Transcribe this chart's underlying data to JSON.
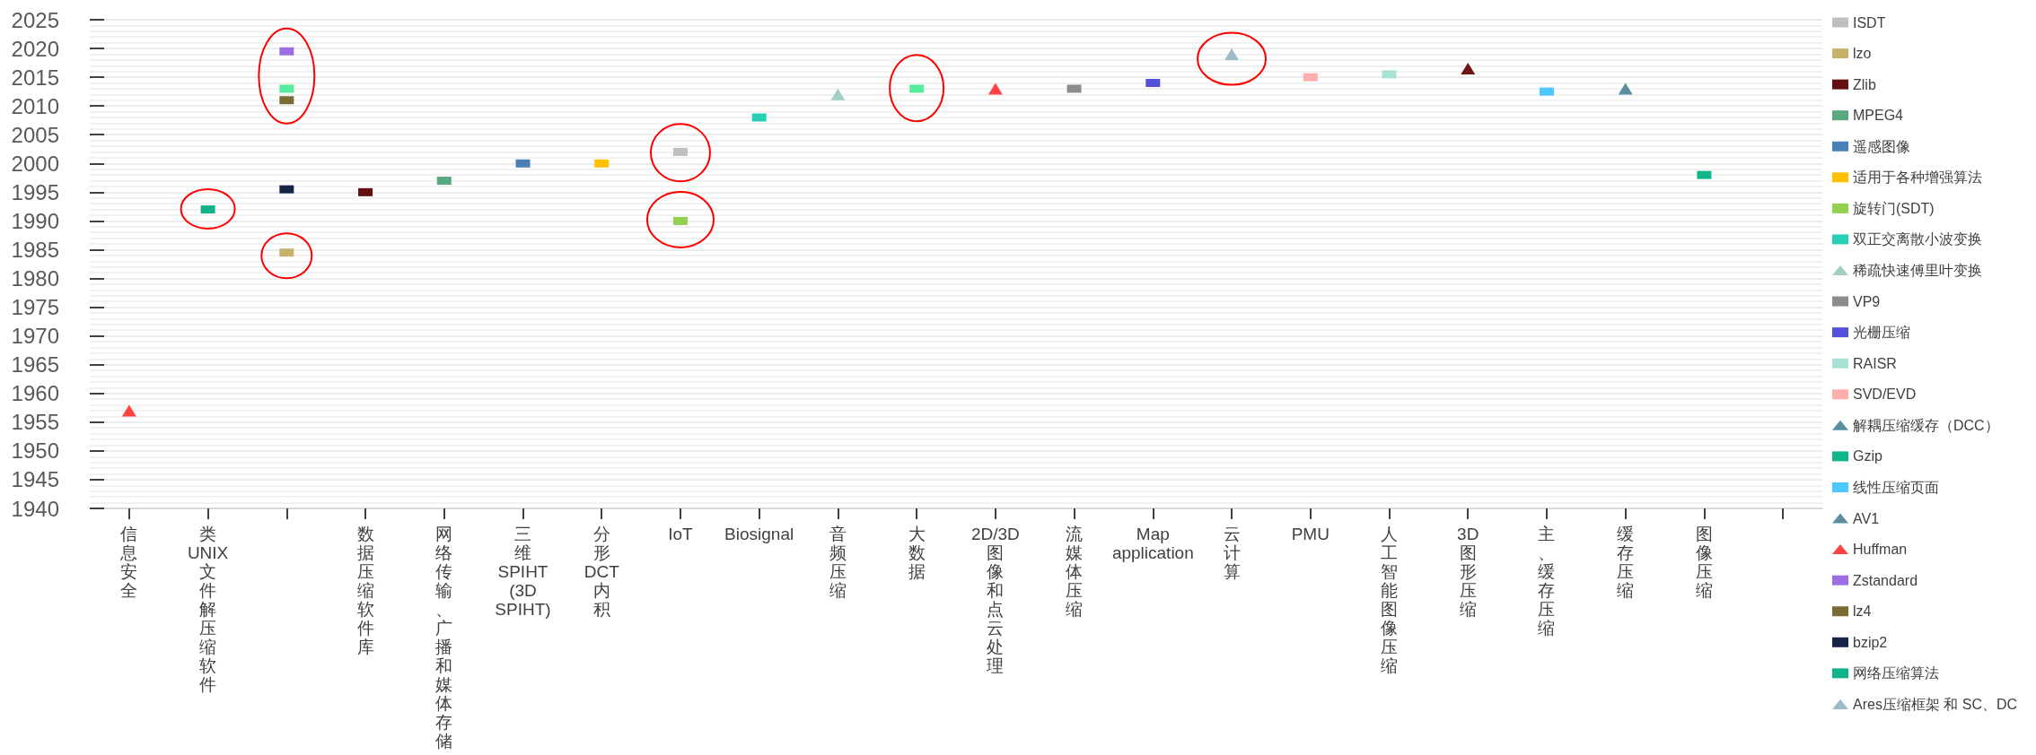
{
  "chart_data": {
    "type": "scatter",
    "marker": "square",
    "grid": "y",
    "legend": "right",
    "categories": [
      "信息安全",
      "类UNIX文件解压缩软件",
      null,
      "数据压缩软件库",
      "网络传输、广播和媒体存储",
      "三维SPIHT (3D SPIHT)",
      "分形DCT内积",
      "IoT",
      "Biosignal",
      "音频压缩",
      "大数据",
      "2D/3D 图像和点云处理",
      "流媒体压缩",
      "Map application",
      "云计算",
      "PMU",
      "人工智能图像压缩",
      "3D图形压缩",
      "主、缓存压缩",
      "缓存压缩",
      "图像压缩",
      null
    ],
    "ylim": [
      1940,
      2025
    ],
    "yticks": [
      1940,
      1945,
      1950,
      1955,
      1960,
      1965,
      1970,
      1975,
      1980,
      1985,
      1990,
      1995,
      2000,
      2005,
      2010,
      2015,
      2020,
      2025
    ],
    "series": [
      {
        "name": "ISDT",
        "color": "#bfbfbf",
        "values": [
          null,
          null,
          null,
          null,
          null,
          null,
          null,
          2002,
          null,
          null,
          null,
          null,
          null,
          null,
          null,
          null,
          null,
          null,
          null,
          null,
          null,
          null
        ]
      },
      {
        "name": "lzo",
        "color": "#c8b26a",
        "values": [
          null,
          null,
          1984.5,
          null,
          null,
          null,
          null,
          null,
          null,
          null,
          null,
          null,
          null,
          null,
          null,
          null,
          null,
          null,
          null,
          null,
          null,
          null
        ]
      },
      {
        "name": "Zlib",
        "color": "#631010",
        "values": [
          null,
          null,
          null,
          1995,
          null,
          null,
          null,
          null,
          null,
          null,
          null,
          null,
          null,
          null,
          null,
          null,
          null,
          null,
          null,
          null,
          null,
          null
        ]
      },
      {
        "name": "MPEG4",
        "color": "#58a97f",
        "values": [
          null,
          null,
          null,
          null,
          1997,
          null,
          null,
          null,
          null,
          null,
          null,
          null,
          null,
          null,
          null,
          null,
          null,
          null,
          null,
          null,
          null,
          null
        ]
      },
      {
        "name": "遥感图像",
        "color": "#4a80b8",
        "values": [
          null,
          null,
          null,
          null,
          null,
          2000,
          null,
          null,
          null,
          null,
          null,
          null,
          null,
          null,
          null,
          null,
          null,
          null,
          null,
          null,
          null,
          null
        ]
      },
      {
        "name": "适用于各种增强算法",
        "color": "#ffc000",
        "values": [
          null,
          null,
          null,
          null,
          null,
          null,
          2000,
          null,
          null,
          null,
          null,
          null,
          null,
          null,
          null,
          null,
          null,
          null,
          null,
          null,
          null,
          null
        ]
      },
      {
        "name": "旋转门(SDT)",
        "color": "#92d050",
        "values": [
          null,
          null,
          null,
          null,
          null,
          null,
          null,
          1990,
          null,
          null,
          null,
          null,
          null,
          null,
          null,
          null,
          null,
          null,
          null,
          null,
          null,
          null
        ]
      },
      {
        "name": "双正交离散小波变换",
        "color": "#27cfb5",
        "values": [
          null,
          null,
          null,
          null,
          null,
          null,
          null,
          null,
          2008,
          null,
          null,
          null,
          null,
          null,
          null,
          null,
          null,
          null,
          null,
          null,
          null,
          null
        ]
      },
      {
        "name": "稀疏快速傅里叶变换",
        "color": "#a0cfc4",
        "marker": "triangle",
        "values": [
          null,
          null,
          null,
          null,
          null,
          null,
          null,
          null,
          null,
          2012,
          null,
          null,
          null,
          null,
          null,
          null,
          null,
          null,
          null,
          null,
          null,
          null
        ]
      },
      {
        "color": "#55ec9b",
        "values": [
          null,
          null,
          2013,
          null,
          null,
          null,
          null,
          null,
          null,
          null,
          2013,
          null,
          null,
          null,
          null,
          null,
          null,
          null,
          null,
          null,
          null,
          null
        ]
      },
      {
        "color": "#ff4343",
        "marker": "triangle",
        "values": [
          null,
          null,
          null,
          null,
          null,
          null,
          null,
          null,
          null,
          null,
          null,
          2013,
          null,
          null,
          null,
          null,
          null,
          null,
          null,
          null,
          null,
          null
        ]
      },
      {
        "name": "VP9",
        "color": "#8c8c8c",
        "values": [
          null,
          null,
          null,
          null,
          null,
          null,
          null,
          null,
          null,
          null,
          null,
          null,
          2013,
          null,
          null,
          null,
          null,
          null,
          null,
          null,
          null,
          null
        ]
      },
      {
        "name": "光栅压缩",
        "color": "#5450da",
        "values": [
          null,
          null,
          null,
          null,
          null,
          null,
          null,
          null,
          null,
          null,
          null,
          null,
          null,
          2014,
          null,
          null,
          null,
          null,
          null,
          null,
          null,
          null
        ]
      },
      {
        "name": "RAISR",
        "color": "#a8e2d4",
        "values": [
          null,
          null,
          null,
          null,
          null,
          null,
          null,
          null,
          null,
          null,
          null,
          null,
          null,
          null,
          null,
          null,
          2015.5,
          null,
          null,
          null,
          null,
          null
        ]
      },
      {
        "name": "SVD/EVD",
        "color": "#ffadad",
        "values": [
          null,
          null,
          null,
          null,
          null,
          null,
          null,
          null,
          null,
          null,
          null,
          null,
          null,
          null,
          null,
          2015,
          null,
          null,
          null,
          null,
          null,
          null
        ]
      },
      {
        "color": "#6d1414",
        "marker": "triangle",
        "values": [
          null,
          null,
          null,
          null,
          null,
          null,
          null,
          null,
          null,
          null,
          null,
          null,
          null,
          null,
          null,
          null,
          null,
          2016.5,
          null,
          null,
          null,
          null
        ]
      },
      {
        "name": "解耦压缩缓存（DCC）",
        "color": "#5a8fa0",
        "marker": "triangle",
        "values": [
          null,
          null,
          null,
          null,
          null,
          null,
          null,
          null,
          null,
          null,
          null,
          null,
          null,
          null,
          null,
          null,
          null,
          null,
          null,
          2013,
          null,
          null
        ]
      },
      {
        "name": "Gzip",
        "color": "#12b48b",
        "values": [
          null,
          1992,
          null,
          null,
          null,
          null,
          null,
          null,
          null,
          null,
          null,
          null,
          null,
          null,
          null,
          null,
          null,
          null,
          null,
          null,
          null,
          null
        ]
      },
      {
        "name": "线性压缩页面",
        "color": "#4ac8ff",
        "values": [
          null,
          null,
          null,
          null,
          null,
          null,
          null,
          null,
          null,
          null,
          null,
          null,
          null,
          null,
          null,
          null,
          null,
          null,
          2012.5,
          null,
          null,
          null
        ]
      },
      {
        "name": "AV1",
        "color": "#5a8fa0",
        "marker": "triangle",
        "values": [
          null,
          null,
          null,
          null,
          null,
          null,
          null,
          null,
          null,
          null,
          null,
          null,
          null,
          null,
          null,
          null,
          null,
          null,
          null,
          null,
          null,
          null
        ]
      },
      {
        "name": "Huffman",
        "color": "#ff4343",
        "marker": "triangle",
        "values": [
          1957,
          null,
          null,
          null,
          null,
          null,
          null,
          null,
          null,
          null,
          null,
          null,
          null,
          null,
          null,
          null,
          null,
          null,
          null,
          null,
          null,
          null
        ]
      },
      {
        "name": "Zstandard",
        "color": "#9b6fe3",
        "values": [
          null,
          null,
          2019.5,
          null,
          null,
          null,
          null,
          null,
          null,
          null,
          null,
          null,
          null,
          null,
          null,
          null,
          null,
          null,
          null,
          null,
          null,
          null
        ]
      },
      {
        "name": "lz4",
        "color": "#7a6a36",
        "values": [
          null,
          null,
          2011,
          null,
          null,
          null,
          null,
          null,
          null,
          null,
          null,
          null,
          null,
          null,
          null,
          null,
          null,
          null,
          null,
          null,
          null,
          null
        ]
      },
      {
        "name": "bzip2",
        "color": "#172448",
        "values": [
          null,
          null,
          1995.5,
          null,
          null,
          null,
          null,
          null,
          null,
          null,
          null,
          null,
          null,
          null,
          null,
          null,
          null,
          null,
          null,
          null,
          null,
          null
        ]
      },
      {
        "name": "网络压缩算法",
        "color": "#12b48b",
        "values": [
          null,
          null,
          null,
          null,
          null,
          null,
          null,
          null,
          null,
          null,
          null,
          null,
          null,
          null,
          null,
          null,
          null,
          null,
          null,
          null,
          1998,
          null
        ]
      },
      {
        "name": "Ares压缩框架 和 SC、DC",
        "color": "#9cbccb",
        "marker": "triangle",
        "values": [
          null,
          null,
          null,
          null,
          null,
          null,
          null,
          null,
          null,
          null,
          null,
          null,
          null,
          null,
          2019,
          null,
          null,
          null,
          null,
          null,
          null,
          null
        ]
      }
    ]
  }
}
